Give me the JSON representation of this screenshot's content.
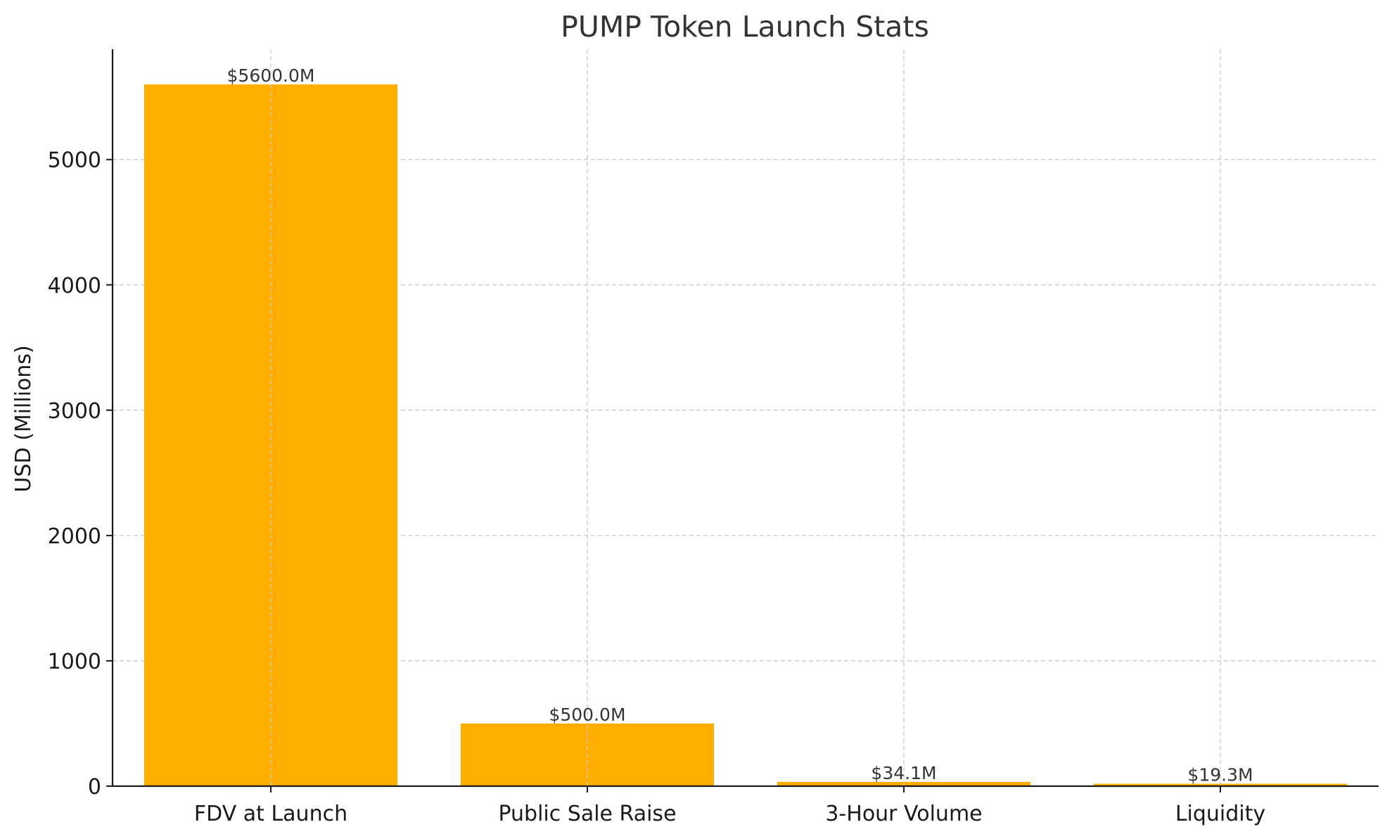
{
  "chart_data": {
    "type": "bar",
    "title": "PUMP Token Launch Stats",
    "xlabel": "",
    "ylabel": "USD (Millions)",
    "categories": [
      "FDV at Launch",
      "Public Sale Raise",
      "3-Hour Volume",
      "Liquidity"
    ],
    "values": [
      5600.0,
      500.0,
      34.1,
      19.3
    ],
    "data_labels": [
      "$5600.0M",
      "$500.0M",
      "$34.1M",
      "$19.3M"
    ],
    "ylim": [
      0,
      5880
    ],
    "yticks": [
      0,
      1000,
      2000,
      3000,
      4000,
      5000
    ],
    "ytick_labels": [
      "0",
      "1000",
      "2000",
      "3000",
      "4000",
      "5000"
    ],
    "grid": true,
    "bar_color": "#ffae00"
  }
}
